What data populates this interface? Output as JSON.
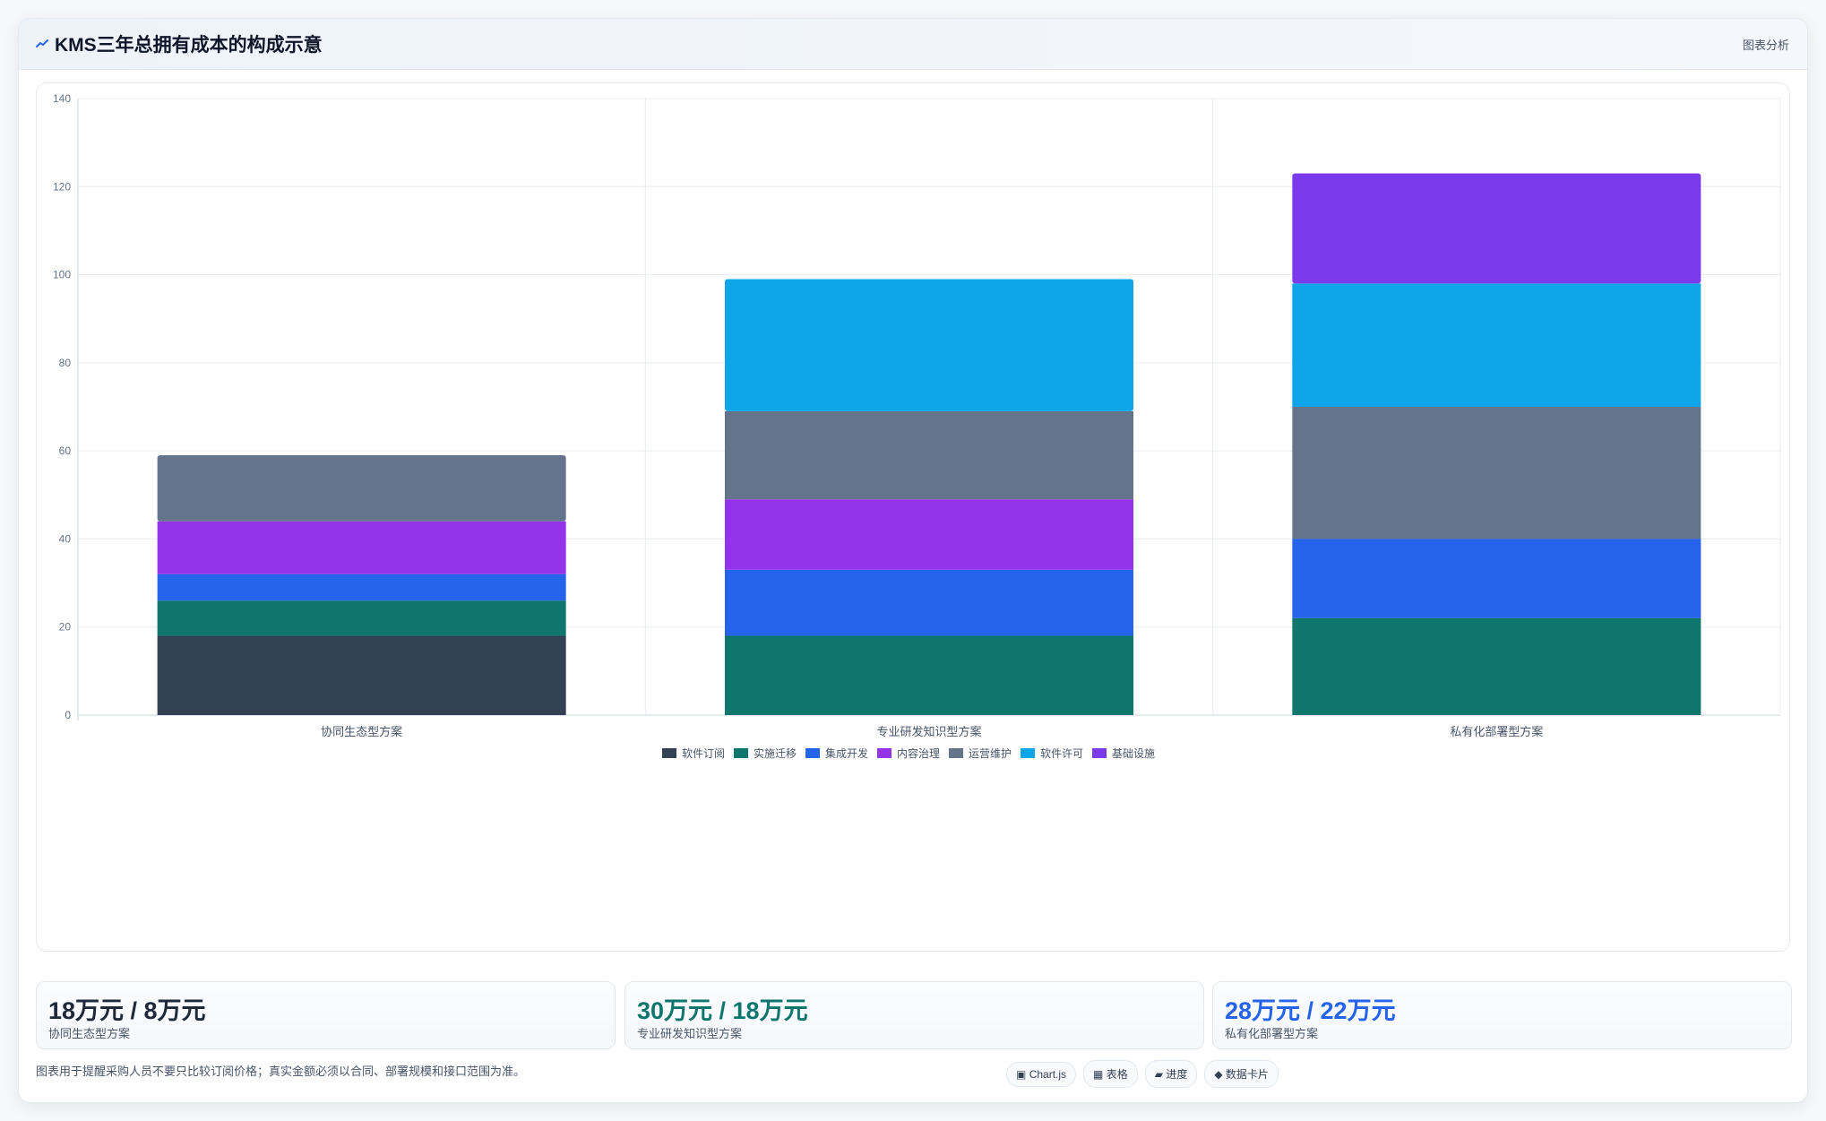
{
  "header": {
    "title": "KMS三年总拥有成本的构成示意",
    "tag": "图表分析"
  },
  "chart_data": {
    "type": "bar",
    "stacked": true,
    "categories": [
      "协同生态型方案",
      "专业研发知识型方案",
      "私有化部署型方案"
    ],
    "ylim": [
      0,
      140
    ],
    "yticks": [
      0,
      20,
      40,
      60,
      80,
      100,
      120,
      140
    ],
    "legend_position": "bottom",
    "grid": true,
    "series": [
      {
        "name": "软件订阅",
        "color": "#334155",
        "values": [
          18,
          0,
          0
        ]
      },
      {
        "name": "实施迁移",
        "color": "#0f766e",
        "values": [
          8,
          18,
          22
        ]
      },
      {
        "name": "集成开发",
        "color": "#2563eb",
        "values": [
          6,
          15,
          18
        ]
      },
      {
        "name": "内容治理",
        "color": "#9333ea",
        "values": [
          12,
          16,
          0
        ]
      },
      {
        "name": "运营维护",
        "color": "#64748b",
        "values": [
          15,
          20,
          30
        ]
      },
      {
        "name": "软件许可",
        "color": "#0ea5e9",
        "values": [
          0,
          30,
          28
        ]
      },
      {
        "name": "基础设施",
        "color": "#7c3aed",
        "values": [
          0,
          0,
          25
        ]
      }
    ]
  },
  "kpis": [
    {
      "value": "18万元 / 8万元",
      "label": "协同生态型方案",
      "color": "#1e293b"
    },
    {
      "value": "30万元 / 18万元",
      "label": "专业研发知识型方案",
      "color": "#0f766e"
    },
    {
      "value": "28万元 / 22万元",
      "label": "私有化部署型方案",
      "color": "#2563eb"
    }
  ],
  "note": "图表用于提醒采购人员不要只比较订阅价格；真实金额必须以合同、部署规模和接口范围为准。",
  "chips": [
    {
      "icon": "chart-icon",
      "glyph": "▣",
      "label": "Chart.js"
    },
    {
      "icon": "table-icon",
      "glyph": "▦",
      "label": "表格"
    },
    {
      "icon": "progress-icon",
      "glyph": "▰",
      "label": "进度"
    },
    {
      "icon": "diamond-icon",
      "glyph": "◆",
      "label": "数据卡片"
    }
  ]
}
